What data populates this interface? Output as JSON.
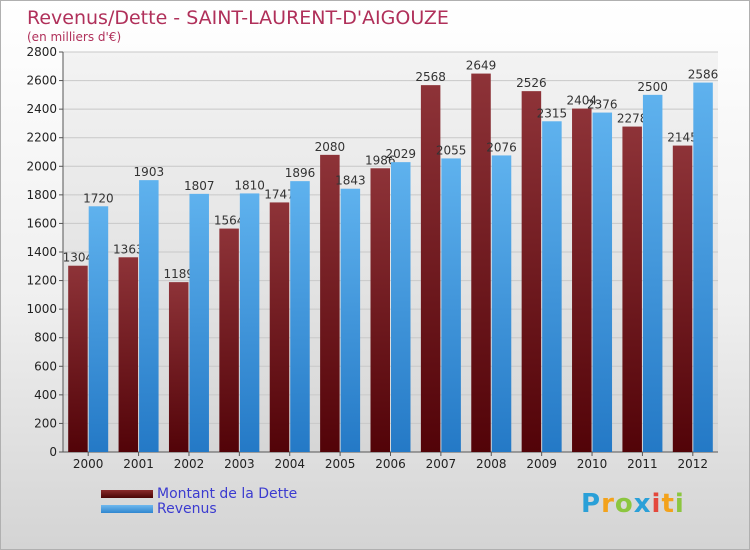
{
  "title": "Revenus/Dette - SAINT-LAURENT-D'AIGOUZE",
  "subtitle": "(en milliers d'€)",
  "logo": {
    "text": "Proxiti",
    "letters": [
      {
        "ch": "P",
        "color": "#2aa0d8"
      },
      {
        "ch": "r",
        "color": "#f3a21b"
      },
      {
        "ch": "o",
        "color": "#8cc63f"
      },
      {
        "ch": "x",
        "color": "#2aa0d8"
      },
      {
        "ch": "i",
        "color": "#e4483c"
      },
      {
        "ch": "t",
        "color": "#f3a21b"
      },
      {
        "ch": "i",
        "color": "#8cc63f"
      }
    ]
  },
  "legend": [
    {
      "label": "Montant de la Dette",
      "color": "#6b0e0e"
    },
    {
      "label": "Revenus",
      "color": "#3d9be0"
    }
  ],
  "chart_data": {
    "type": "bar",
    "title": "Revenus/Dette - SAINT-LAURENT-D'AIGOUZE",
    "subtitle": "(en milliers d'€)",
    "categories": [
      "2000",
      "2001",
      "2002",
      "2003",
      "2004",
      "2005",
      "2006",
      "2007",
      "2008",
      "2009",
      "2010",
      "2011",
      "2012"
    ],
    "series": [
      {
        "name": "Montant de la Dette",
        "color": "#7a1a1f",
        "values": [
          1304,
          1363,
          1189,
          1564,
          1747,
          2080,
          1986,
          2568,
          2649,
          2526,
          2404,
          2278,
          2145
        ],
        "labels": [
          "1304",
          "1363",
          "1189",
          "1564",
          "1747",
          "2080",
          "1986",
          "2568",
          "2649",
          "2526",
          "2404",
          "2278",
          "2145"
        ]
      },
      {
        "name": "Revenus",
        "color": "#4aa3e6",
        "values": [
          1720,
          1903,
          1807,
          1810,
          1896,
          1843,
          2029,
          2055,
          2076,
          2315,
          2376,
          2500,
          2586
        ],
        "labels": [
          "1720",
          "1903",
          "1807",
          "1810",
          "1896",
          "1843",
          "2029",
          "2055",
          "2076",
          "2315",
          "2376",
          "2500",
          "2586"
        ]
      }
    ],
    "ylim": [
      0,
      2800
    ],
    "yticks": [
      "0",
      "200",
      "400",
      "600",
      "800",
      "1000",
      "1200",
      "1400",
      "1600",
      "1800",
      "2000",
      "2200",
      "2400",
      "2600",
      "2800"
    ],
    "grid": true,
    "legend_position": "bottom-left"
  }
}
